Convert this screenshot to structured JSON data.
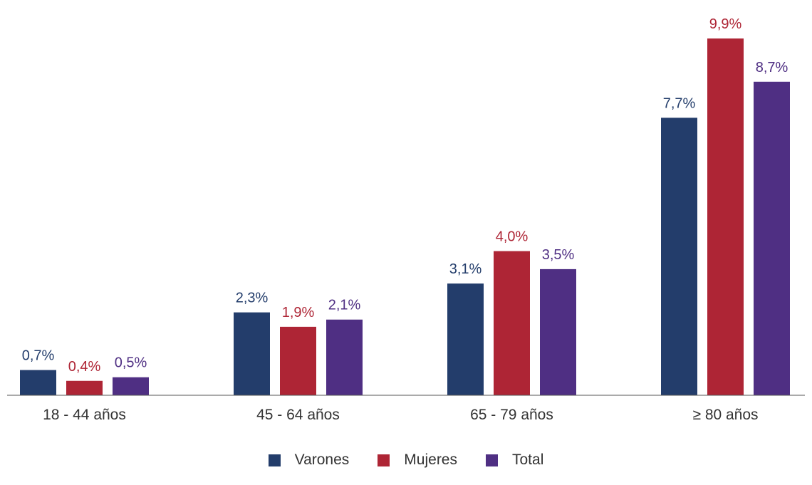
{
  "chart_data": {
    "type": "bar",
    "title": "",
    "xlabel": "",
    "ylabel": "",
    "categories": [
      "18 - 44 años",
      "45 - 64 años",
      "65 - 79 años",
      "≥ 80 años"
    ],
    "ylim": [
      0,
      10
    ],
    "grid": false,
    "legend_position": "bottom-center",
    "series": [
      {
        "name": "Varones",
        "color": "#233d6b",
        "values": [
          0.7,
          2.3,
          3.1,
          7.7
        ],
        "labels": [
          "0,7%",
          "2,3%",
          "3,1%",
          "7,7%"
        ]
      },
      {
        "name": "Mujeres",
        "color": "#ae2535",
        "values": [
          0.4,
          1.9,
          4.0,
          9.9
        ],
        "labels": [
          "0,4%",
          "1,9%",
          "4,0%",
          "9,9%"
        ]
      },
      {
        "name": "Total",
        "color": "#4f2f83",
        "values": [
          0.5,
          2.1,
          3.5,
          8.7
        ],
        "labels": [
          "0,5%",
          "2,1%",
          "3,5%",
          "8,7%"
        ]
      }
    ]
  }
}
